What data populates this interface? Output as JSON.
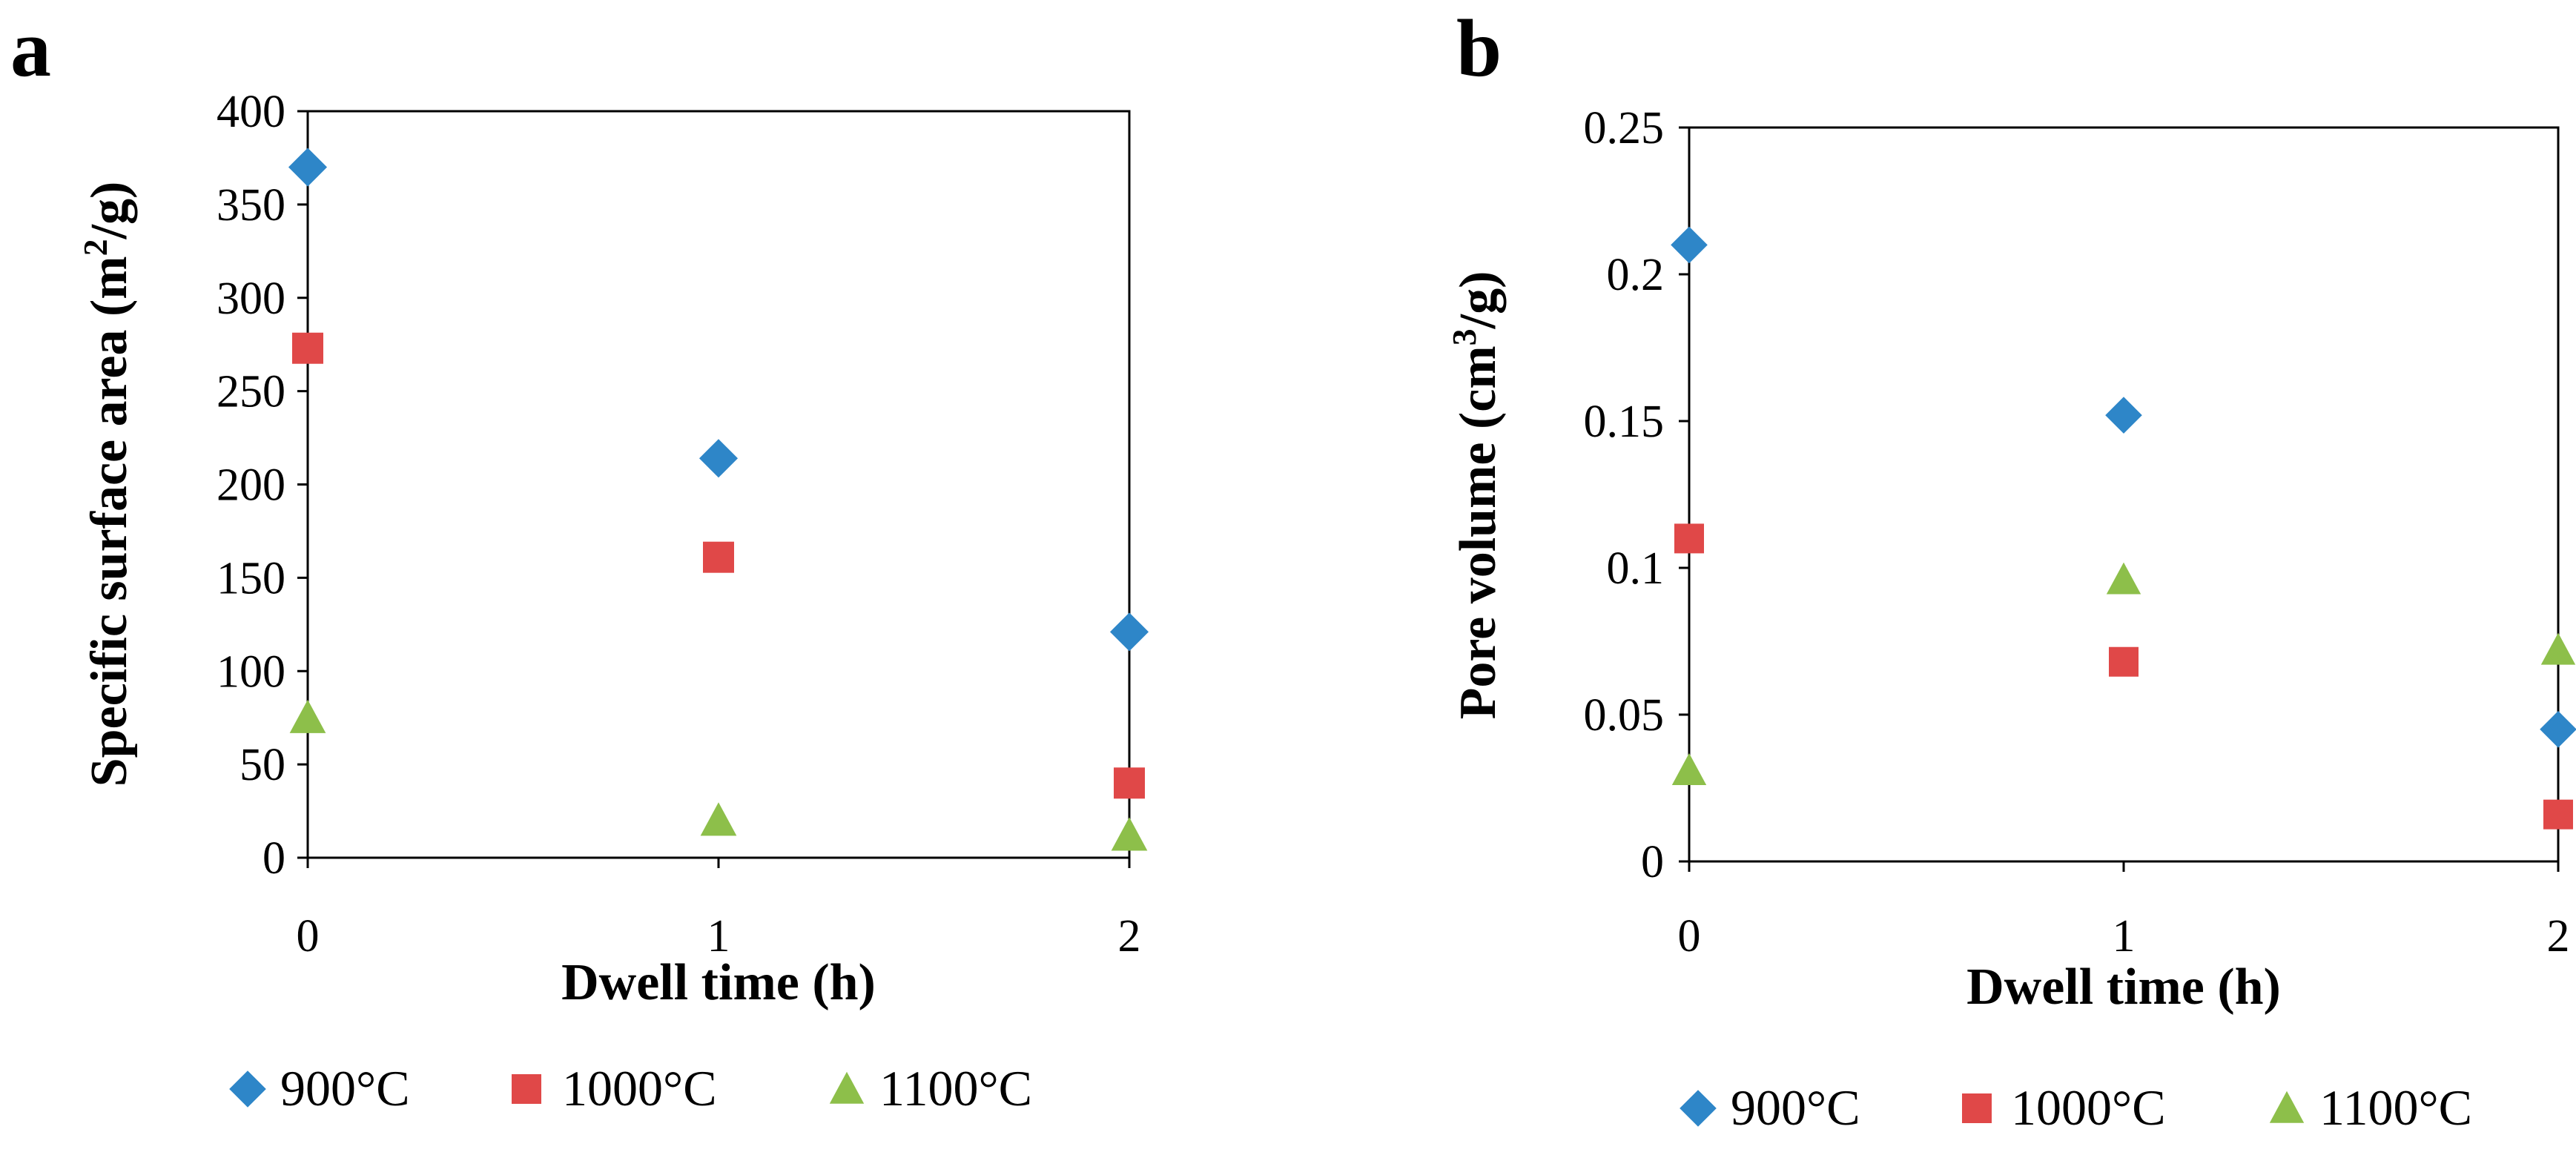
{
  "chart_data": [
    {
      "type": "scatter",
      "panel": "a",
      "title": "",
      "xlabel": "Dwell  time (h)",
      "ylabel": "Specific surface area (m²/g)",
      "ylabel_parts": {
        "pre": "Specific surface area (m",
        "sup": "2",
        "post": "/g)"
      },
      "xlim": [
        0,
        2
      ],
      "ylim": [
        0,
        400
      ],
      "xticks": [
        "0",
        "1",
        "2"
      ],
      "yticks": [
        "0",
        "50",
        "100",
        "150",
        "200",
        "250",
        "300",
        "350",
        "400"
      ],
      "grid": false,
      "legend_position": "bottom",
      "series": [
        {
          "name": "900°C",
          "marker": "diamond",
          "color": "#2E86C8",
          "x": [
            0,
            1,
            2
          ],
          "y": [
            370,
            214,
            121
          ]
        },
        {
          "name": "1000°C",
          "marker": "square",
          "color": "#E04848",
          "x": [
            0,
            1,
            2
          ],
          "y": [
            273,
            161,
            40
          ]
        },
        {
          "name": "1100°C",
          "marker": "triangle",
          "color": "#8DBF4A",
          "x": [
            0,
            1,
            2
          ],
          "y": [
            75,
            20,
            12
          ]
        }
      ]
    },
    {
      "type": "scatter",
      "panel": "b",
      "title": "",
      "xlabel": "Dwell  time (h)",
      "ylabel": "Pore volume (cm³/g)",
      "ylabel_parts": {
        "pre": "Pore volume (cm",
        "sup": "3",
        "post": "/g)"
      },
      "xlim": [
        0,
        2
      ],
      "ylim": [
        0,
        0.25
      ],
      "xticks": [
        "0",
        "1",
        "2"
      ],
      "yticks": [
        "0",
        "0.05",
        "0.1",
        "0.15",
        "0.2",
        "0.25"
      ],
      "grid": false,
      "legend_position": "bottom",
      "series": [
        {
          "name": "900°C",
          "marker": "diamond",
          "color": "#2E86C8",
          "x": [
            0,
            1,
            2
          ],
          "y": [
            0.21,
            0.152,
            0.045
          ]
        },
        {
          "name": "1000°C",
          "marker": "square",
          "color": "#E04848",
          "x": [
            0,
            1,
            2
          ],
          "y": [
            0.11,
            0.068,
            0.016
          ]
        },
        {
          "name": "1100°C",
          "marker": "triangle",
          "color": "#8DBF4A",
          "x": [
            0,
            1,
            2
          ],
          "y": [
            0.031,
            0.096,
            0.072
          ]
        }
      ]
    }
  ]
}
